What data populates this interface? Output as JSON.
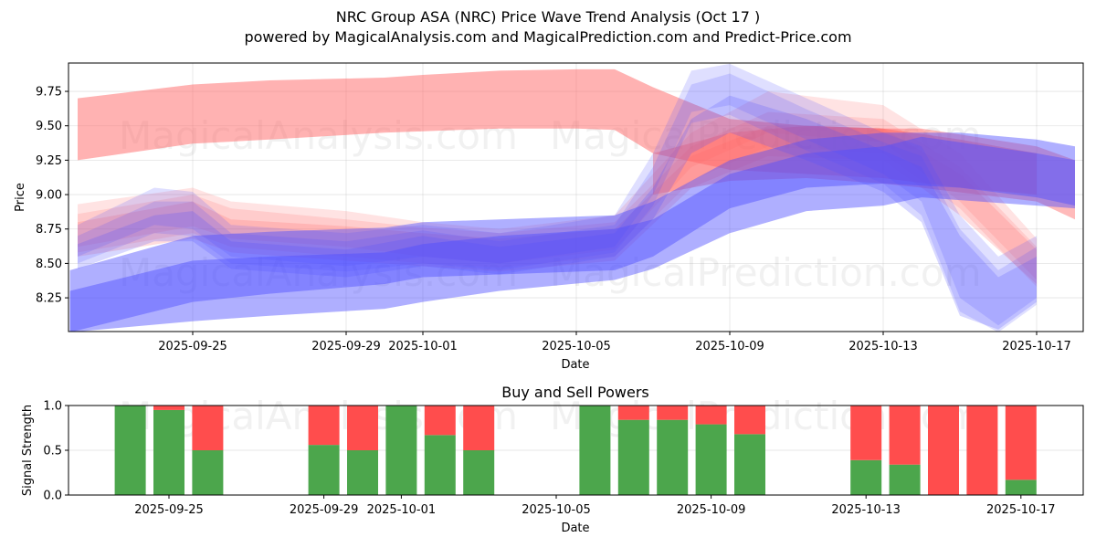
{
  "title": "NRC Group ASA (NRC) Price Wave Trend Analysis (Oct 17 )",
  "subtitle": "powered by MagicalAnalysis.com and MagicalPrediction.com and Predict-Price.com",
  "watermarks": [
    "MagicalAnalysis.com",
    "MagicalPrediction.com"
  ],
  "colors": {
    "buy": "#4ca64c",
    "sell": "#ff4d4d",
    "red_band": "#ff6666",
    "blue_band": "#4d4dff"
  },
  "chart_data": [
    {
      "type": "area",
      "title": "",
      "xlabel": "Date",
      "ylabel": "Price",
      "ylim": [
        8.0,
        9.96
      ],
      "xlim": [
        "2025-09-21",
        "2025-10-18"
      ],
      "grid": true,
      "x_ticks": [
        "2025-09-25",
        "2025-09-29",
        "2025-10-01",
        "2025-10-05",
        "2025-10-09",
        "2025-10-13",
        "2025-10-17"
      ],
      "y_ticks": [
        "8.25",
        "8.50",
        "8.75",
        "9.00",
        "9.25",
        "9.50",
        "9.75"
      ],
      "series": [
        {
          "name": "red-upper-band",
          "color": "red",
          "opacity": 0.5,
          "x": [
            "2025-09-22",
            "2025-09-25",
            "2025-09-27",
            "2025-09-30",
            "2025-10-01",
            "2025-10-03",
            "2025-10-05",
            "2025-10-06",
            "2025-10-07",
            "2025-10-09",
            "2025-10-11",
            "2025-10-13",
            "2025-10-15",
            "2025-10-17"
          ],
          "upper": [
            9.7,
            9.8,
            9.83,
            9.85,
            9.87,
            9.9,
            9.91,
            9.91,
            9.78,
            9.55,
            9.5,
            9.48,
            9.4,
            9.3
          ],
          "lower": [
            9.25,
            9.37,
            9.4,
            9.45,
            9.46,
            9.48,
            9.48,
            9.47,
            9.3,
            9.18,
            9.15,
            9.12,
            9.05,
            9.0
          ]
        },
        {
          "name": "red-wave-1",
          "color": "red",
          "opacity": 0.18,
          "x": [
            "2025-09-22",
            "2025-09-25",
            "2025-09-26",
            "2025-09-29",
            "2025-10-01",
            "2025-10-03",
            "2025-10-06",
            "2025-10-08",
            "2025-10-10",
            "2025-10-13",
            "2025-10-15",
            "2025-10-17"
          ],
          "upper": [
            8.93,
            9.05,
            8.95,
            8.88,
            8.8,
            8.75,
            8.85,
            9.45,
            9.75,
            9.65,
            9.3,
            8.68
          ],
          "lower": [
            8.62,
            8.77,
            8.68,
            8.62,
            8.55,
            8.5,
            8.6,
            9.2,
            9.45,
            9.38,
            8.95,
            8.38
          ]
        },
        {
          "name": "red-wave-2",
          "color": "red",
          "opacity": 0.18,
          "x": [
            "2025-09-22",
            "2025-09-25",
            "2025-09-26",
            "2025-09-29",
            "2025-10-01",
            "2025-10-03",
            "2025-10-06",
            "2025-10-08",
            "2025-10-10",
            "2025-10-13",
            "2025-10-15",
            "2025-10-17"
          ],
          "upper": [
            8.86,
            9.0,
            8.9,
            8.82,
            8.76,
            8.72,
            8.8,
            9.35,
            9.6,
            9.55,
            9.2,
            8.62
          ],
          "lower": [
            8.58,
            8.72,
            8.62,
            8.55,
            8.5,
            8.47,
            8.55,
            9.1,
            9.35,
            9.3,
            8.9,
            8.33
          ]
        },
        {
          "name": "red-wave-3",
          "color": "red",
          "opacity": 0.22,
          "x": [
            "2025-09-22",
            "2025-09-25",
            "2025-09-26",
            "2025-09-29",
            "2025-10-01",
            "2025-10-03",
            "2025-10-06",
            "2025-10-08",
            "2025-10-10",
            "2025-10-13",
            "2025-10-15",
            "2025-10-17"
          ],
          "upper": [
            8.8,
            8.95,
            8.82,
            8.77,
            8.72,
            8.68,
            8.75,
            9.28,
            9.5,
            9.48,
            9.15,
            8.6
          ],
          "lower": [
            8.55,
            8.68,
            8.58,
            8.52,
            8.48,
            8.44,
            8.52,
            9.05,
            9.28,
            9.25,
            8.85,
            8.35
          ]
        },
        {
          "name": "red-trend-band",
          "color": "red",
          "opacity": 0.45,
          "x": [
            "2025-10-07",
            "2025-10-09",
            "2025-10-11",
            "2025-10-13",
            "2025-10-14",
            "2025-10-17",
            "2025-10-18"
          ],
          "upper": [
            9.3,
            9.45,
            9.5,
            9.48,
            9.48,
            9.35,
            9.25
          ],
          "lower": [
            9.0,
            9.1,
            9.12,
            9.08,
            9.05,
            8.95,
            8.82
          ]
        },
        {
          "name": "blue-wave-1",
          "color": "blue",
          "opacity": 0.18,
          "x": [
            "2025-09-22",
            "2025-09-24",
            "2025-09-25",
            "2025-09-26",
            "2025-09-29",
            "2025-10-01",
            "2025-10-03",
            "2025-10-06",
            "2025-10-07",
            "2025-10-08",
            "2025-10-09",
            "2025-10-11",
            "2025-10-13",
            "2025-10-14",
            "2025-10-15",
            "2025-10-16",
            "2025-10-17"
          ],
          "upper": [
            8.78,
            9.05,
            9.02,
            8.78,
            8.72,
            8.78,
            8.72,
            8.85,
            9.3,
            9.9,
            9.95,
            9.7,
            9.45,
            9.35,
            8.85,
            8.55,
            8.7
          ],
          "lower": [
            8.55,
            8.78,
            8.75,
            8.55,
            8.48,
            8.55,
            8.5,
            8.62,
            9.0,
            9.6,
            9.65,
            9.4,
            9.15,
            8.95,
            8.25,
            8.05,
            8.25
          ]
        },
        {
          "name": "blue-wave-2",
          "color": "blue",
          "opacity": 0.18,
          "x": [
            "2025-09-22",
            "2025-09-24",
            "2025-09-25",
            "2025-09-26",
            "2025-09-29",
            "2025-10-01",
            "2025-10-03",
            "2025-10-06",
            "2025-10-07",
            "2025-10-08",
            "2025-10-09",
            "2025-10-11",
            "2025-10-13",
            "2025-10-14",
            "2025-10-15",
            "2025-10-16",
            "2025-10-17"
          ],
          "upper": [
            8.7,
            8.95,
            8.95,
            8.72,
            8.66,
            8.74,
            8.66,
            8.78,
            9.2,
            9.8,
            9.88,
            9.62,
            9.38,
            9.28,
            8.75,
            8.45,
            8.62
          ],
          "lower": [
            8.5,
            8.72,
            8.7,
            8.5,
            8.44,
            8.5,
            8.45,
            8.58,
            8.92,
            9.52,
            9.58,
            9.32,
            9.08,
            8.85,
            8.15,
            8.0,
            8.2
          ]
        },
        {
          "name": "blue-wave-3",
          "color": "blue",
          "opacity": 0.22,
          "x": [
            "2025-09-22",
            "2025-09-24",
            "2025-09-25",
            "2025-09-26",
            "2025-09-29",
            "2025-10-01",
            "2025-10-03",
            "2025-10-06",
            "2025-10-07",
            "2025-10-08",
            "2025-10-09",
            "2025-10-11",
            "2025-10-13",
            "2025-10-14",
            "2025-10-15",
            "2025-10-16",
            "2025-10-17"
          ],
          "upper": [
            8.64,
            8.85,
            8.88,
            8.66,
            8.6,
            8.7,
            8.62,
            8.72,
            9.05,
            9.55,
            9.72,
            9.55,
            9.32,
            9.2,
            8.7,
            8.4,
            8.55
          ],
          "lower": [
            8.46,
            8.66,
            8.66,
            8.46,
            8.4,
            8.48,
            8.42,
            8.55,
            8.82,
            9.3,
            9.45,
            9.25,
            9.02,
            8.8,
            8.12,
            8.02,
            8.22
          ]
        },
        {
          "name": "blue-upper-band",
          "color": "blue",
          "opacity": 0.45,
          "x": [
            "2025-09-21.8",
            "2025-09-25",
            "2025-09-27",
            "2025-09-30",
            "2025-10-01",
            "2025-10-03",
            "2025-10-06",
            "2025-10-07",
            "2025-10-09",
            "2025-10-11",
            "2025-10-13",
            "2025-10-15",
            "2025-10-17",
            "2025-10-18"
          ],
          "upper": [
            8.45,
            8.7,
            8.73,
            8.76,
            8.8,
            8.82,
            8.85,
            8.95,
            9.25,
            9.4,
            9.45,
            9.45,
            9.4,
            9.35
          ],
          "lower": [
            8.0,
            8.22,
            8.28,
            8.35,
            8.4,
            8.42,
            8.45,
            8.55,
            8.9,
            9.05,
            9.08,
            9.05,
            8.98,
            8.92
          ]
        },
        {
          "name": "blue-lower-band",
          "color": "blue",
          "opacity": 0.45,
          "x": [
            "2025-09-21.8",
            "2025-09-25",
            "2025-09-27",
            "2025-09-30",
            "2025-10-01",
            "2025-10-03",
            "2025-10-06",
            "2025-10-07",
            "2025-10-09",
            "2025-10-11",
            "2025-10-13",
            "2025-10-14",
            "2025-10-17",
            "2025-10-18"
          ],
          "upper": [
            8.3,
            8.52,
            8.55,
            8.58,
            8.64,
            8.7,
            8.75,
            8.82,
            9.15,
            9.3,
            9.35,
            9.42,
            9.3,
            9.25
          ],
          "lower": [
            8.0,
            8.08,
            8.12,
            8.17,
            8.22,
            8.3,
            8.38,
            8.46,
            8.72,
            8.88,
            8.92,
            8.98,
            8.92,
            8.9
          ]
        }
      ]
    },
    {
      "type": "bar",
      "title": "Buy and Sell Powers",
      "xlabel": "Date",
      "ylabel": "Signal Strength",
      "ylim": [
        0.0,
        1.0
      ],
      "y_ticks": [
        "0.0",
        "0.5",
        "1.0"
      ],
      "x_ticks": [
        "2025-09-25",
        "2025-09-29",
        "2025-10-01",
        "2025-10-05",
        "2025-10-09",
        "2025-10-13",
        "2025-10-17"
      ],
      "grid": true,
      "categories": [
        "2025-09-24",
        "2025-09-25",
        "2025-09-26",
        "2025-09-29",
        "2025-09-30",
        "2025-10-01",
        "2025-10-02",
        "2025-10-03",
        "2025-10-06",
        "2025-10-07",
        "2025-10-08",
        "2025-10-09",
        "2025-10-10",
        "2025-10-13",
        "2025-10-14",
        "2025-10-15",
        "2025-10-16",
        "2025-10-17"
      ],
      "series": [
        {
          "name": "Buy",
          "color": "#4ca64c",
          "values": [
            1.0,
            0.95,
            0.5,
            0.56,
            0.5,
            1.0,
            0.67,
            0.5,
            1.0,
            0.84,
            0.84,
            0.79,
            0.68,
            0.39,
            0.34,
            0.0,
            0.0,
            0.17
          ]
        },
        {
          "name": "Sell",
          "color": "#ff4d4d",
          "values": [
            0.0,
            0.05,
            0.5,
            0.44,
            0.5,
            0.0,
            0.33,
            0.5,
            0.0,
            0.16,
            0.16,
            0.21,
            0.32,
            0.61,
            0.66,
            1.0,
            1.0,
            0.83
          ]
        }
      ]
    }
  ]
}
